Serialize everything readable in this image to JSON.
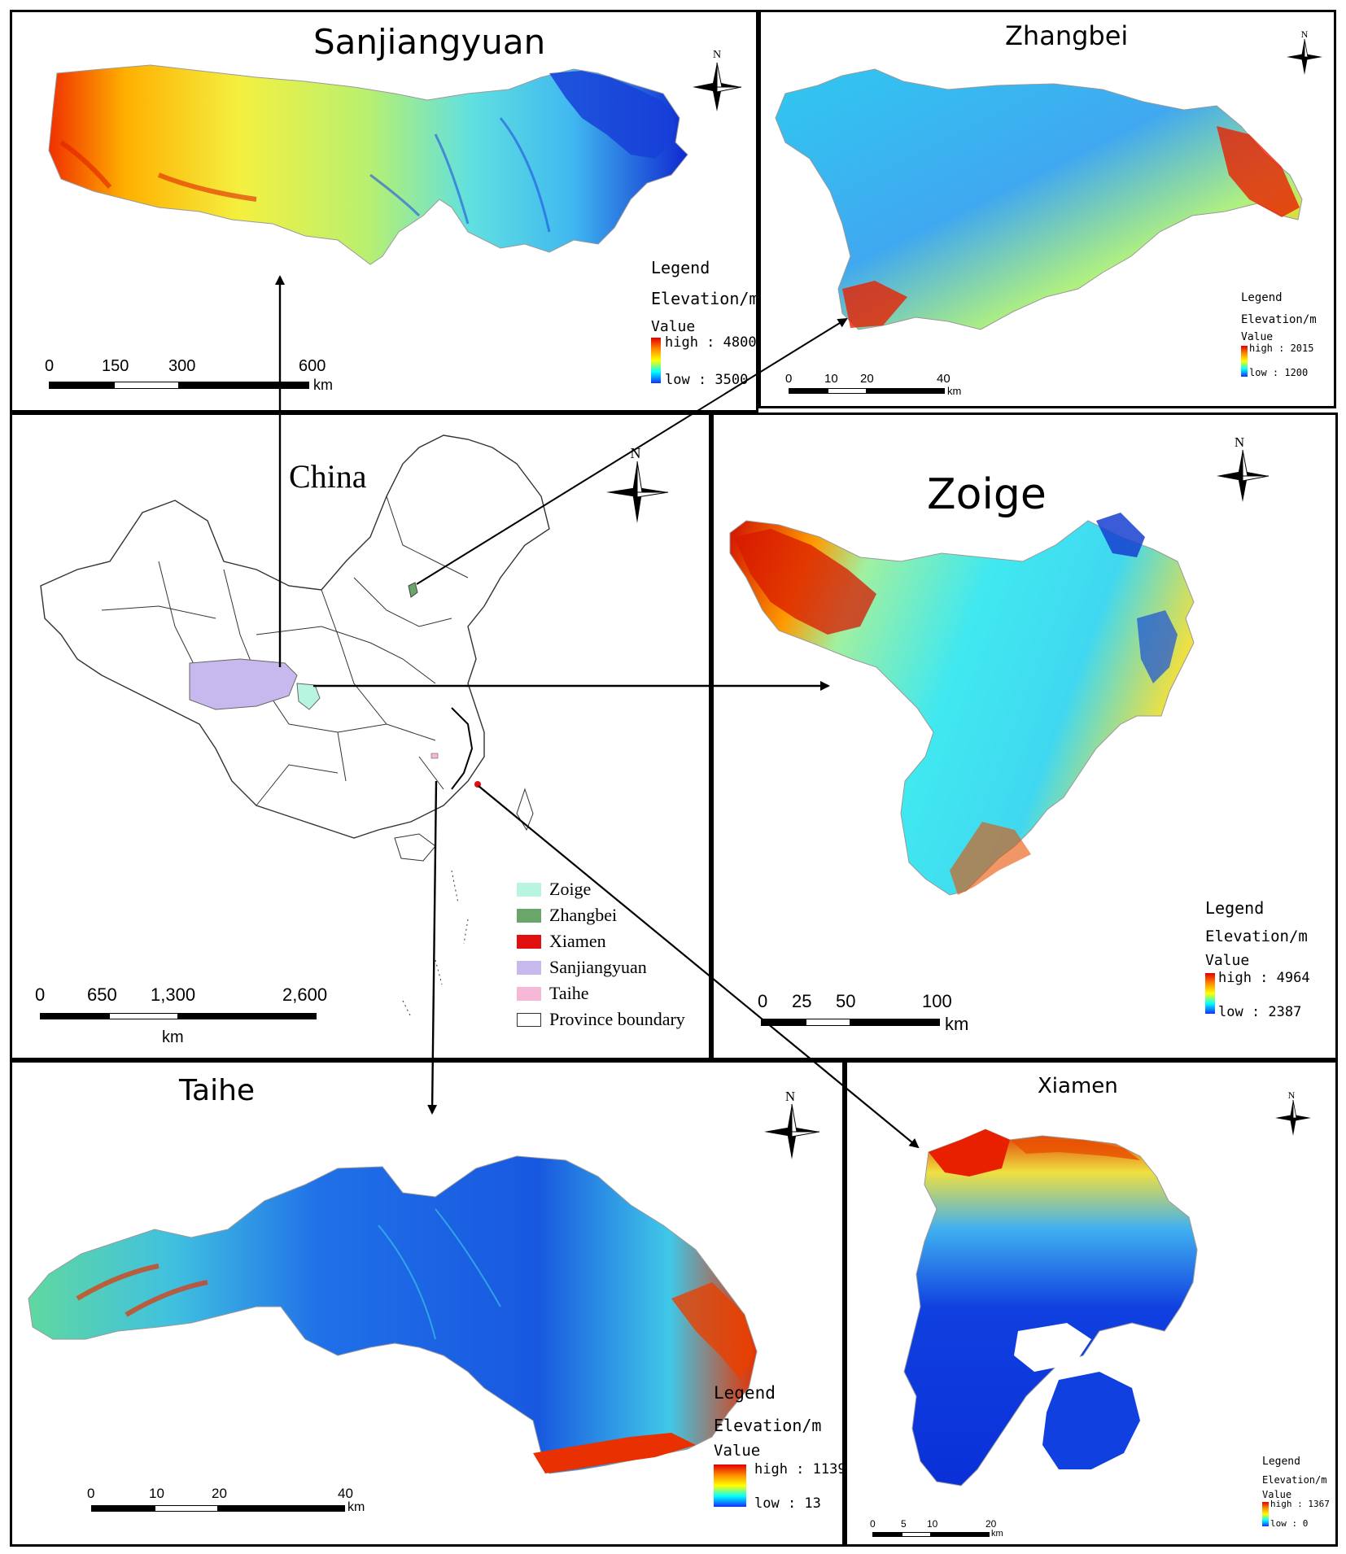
{
  "panels": {
    "sanjiangyuan": {
      "title": "Sanjiangyuan",
      "north": "N",
      "legend": {
        "title": "Legend",
        "field": "Elevation/m",
        "value_label": "Value",
        "high": "high : 4800",
        "low": "low : 3500"
      },
      "scale": {
        "ticks": [
          "0",
          "150",
          "300",
          "600"
        ],
        "unit": "km"
      }
    },
    "zhangbei": {
      "title": "Zhangbei",
      "north": "N",
      "legend": {
        "title": "Legend",
        "field": "Elevation/m",
        "value_label": "Value",
        "high": "high : 2015",
        "low": "low : 1200"
      },
      "scale": {
        "ticks": [
          "0",
          "10",
          "20",
          "40"
        ],
        "unit": "km"
      }
    },
    "china": {
      "title": "China",
      "north": "N",
      "legend": [
        {
          "label": "Zoige",
          "color": "#b8f5e0"
        },
        {
          "label": "Zhangbei",
          "color": "#6aa56a"
        },
        {
          "label": "Xiamen",
          "color": "#e01010"
        },
        {
          "label": "Sanjiangyuan",
          "color": "#c7b8ee"
        },
        {
          "label": "Taihe",
          "color": "#f6b8d6"
        },
        {
          "label": "Province boundary",
          "color": "#ffffff"
        }
      ],
      "scale": {
        "ticks": [
          "0",
          "650",
          "1,300",
          "2,600"
        ],
        "unit": "km"
      }
    },
    "zoige": {
      "title": "Zoige",
      "north": "N",
      "legend": {
        "title": "Legend",
        "field": "Elevation/m",
        "value_label": "Value",
        "high": "high : 4964",
        "low": "low : 2387"
      },
      "scale": {
        "ticks": [
          "0",
          "25",
          "50",
          "100"
        ],
        "unit": "km"
      }
    },
    "taihe": {
      "title": "Taihe",
      "north": "N",
      "legend": {
        "title": "Legend",
        "field": "Elevation/m",
        "value_label": "Value",
        "high": "high : 1139",
        "low": "low : 13"
      },
      "scale": {
        "ticks": [
          "0",
          "10",
          "20",
          "40"
        ],
        "unit": "km"
      }
    },
    "xiamen": {
      "title": "Xiamen",
      "north": "N",
      "legend": {
        "title": "Legend",
        "field": "Elevation/m",
        "value_label": "Value",
        "high": "high : 1367",
        "low": "low : 0"
      },
      "scale": {
        "ticks": [
          "0",
          "5",
          "10",
          "20"
        ],
        "unit": "km"
      }
    }
  }
}
